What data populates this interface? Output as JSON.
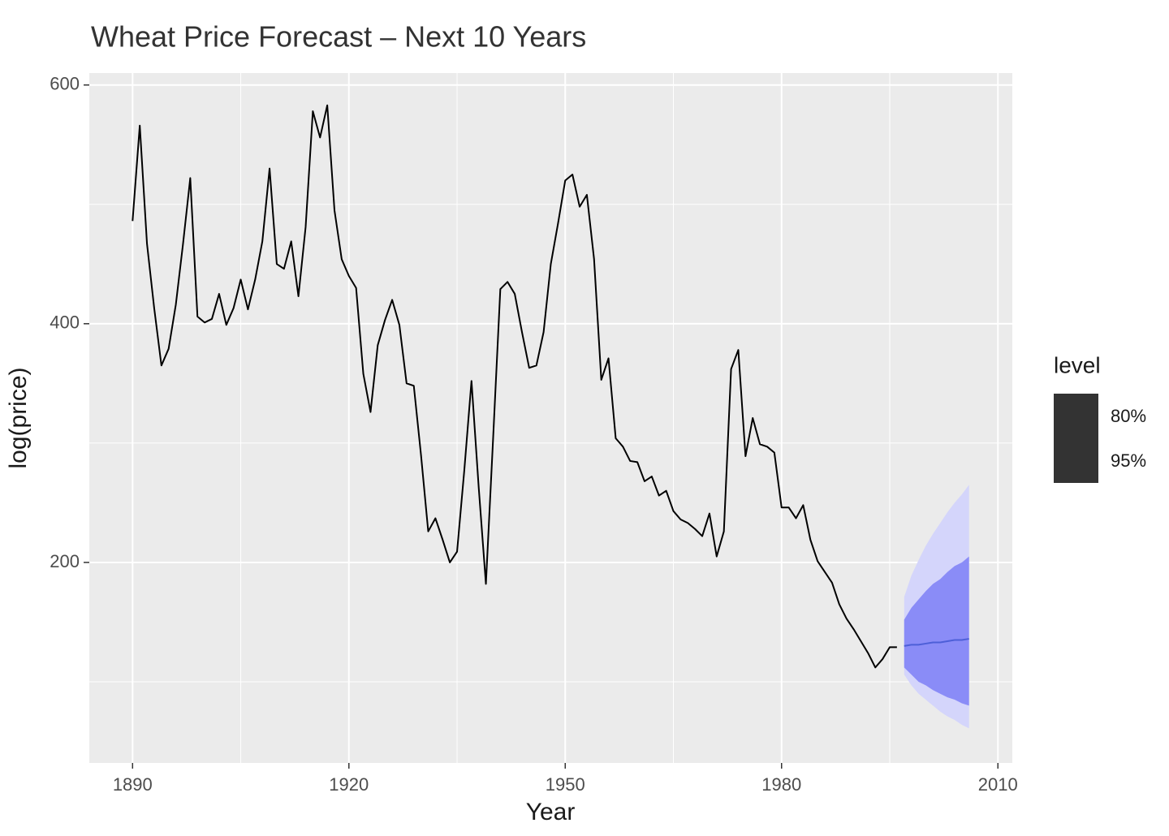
{
  "chart_data": {
    "type": "line",
    "title": "Wheat Price Forecast – Next 10 Years",
    "x_label": "Year",
    "y_label": "log(price)",
    "xlim": [
      1884,
      2012
    ],
    "ylim": [
      32,
      610
    ],
    "xticks": [
      1890,
      1920,
      1950,
      1980,
      2010
    ],
    "yticks": [
      200,
      400,
      600
    ],
    "x_minor_grid": [
      1905,
      1935,
      1965,
      1995
    ],
    "y_minor_grid": [
      100,
      300,
      500
    ],
    "grid": true,
    "color": "#000000",
    "x": [
      1890,
      1891,
      1892,
      1893,
      1894,
      1895,
      1896,
      1897,
      1898,
      1899,
      1900,
      1901,
      1902,
      1903,
      1904,
      1905,
      1906,
      1907,
      1908,
      1909,
      1910,
      1911,
      1912,
      1913,
      1914,
      1915,
      1916,
      1917,
      1918,
      1919,
      1920,
      1921,
      1922,
      1923,
      1924,
      1925,
      1926,
      1927,
      1928,
      1929,
      1930,
      1931,
      1932,
      1933,
      1934,
      1935,
      1936,
      1937,
      1938,
      1939,
      1940,
      1941,
      1942,
      1943,
      1944,
      1945,
      1946,
      1947,
      1948,
      1949,
      1950,
      1951,
      1952,
      1953,
      1954,
      1955,
      1956,
      1957,
      1958,
      1959,
      1960,
      1961,
      1962,
      1963,
      1964,
      1965,
      1966,
      1967,
      1968,
      1969,
      1970,
      1971,
      1972,
      1973,
      1974,
      1975,
      1976,
      1977,
      1978,
      1979,
      1980,
      1981,
      1982,
      1983,
      1984,
      1985,
      1986,
      1987,
      1988,
      1989,
      1990,
      1991,
      1992,
      1993,
      1994,
      1995,
      1996
    ],
    "values": [
      486,
      566,
      467,
      413,
      365,
      379,
      416,
      467,
      522,
      406,
      401,
      404,
      425,
      399,
      413,
      437,
      412,
      437,
      469,
      530,
      450,
      446,
      469,
      423,
      481,
      578,
      556,
      583,
      495,
      454,
      440,
      430,
      358,
      326,
      382,
      403,
      420,
      399,
      350,
      348,
      290,
      226,
      237,
      219,
      200,
      209,
      277,
      352,
      263,
      182,
      304,
      429,
      435,
      425,
      393,
      363,
      365,
      393,
      450,
      484,
      520,
      525,
      498,
      508,
      454,
      353,
      371,
      304,
      297,
      285,
      284,
      268,
      272,
      256,
      260,
      243,
      236,
      233,
      228,
      222,
      241,
      205,
      226,
      362,
      378,
      289,
      321,
      299,
      297,
      292,
      246,
      246,
      237,
      248,
      219,
      201,
      192,
      183,
      165,
      153,
      144,
      134,
      124,
      112,
      119,
      129,
      129
    ],
    "forecast": {
      "x": [
        1997,
        1998,
        1999,
        2000,
        2001,
        2002,
        2003,
        2004,
        2005,
        2006
      ],
      "mean": [
        130,
        131,
        131,
        132,
        133,
        133,
        134,
        135,
        135,
        136
      ],
      "color": "#4d5fd8",
      "bands": [
        {
          "name": "95%",
          "color": "#d4d5fb",
          "upper": [
            171,
            189,
            202,
            214,
            224,
            233,
            242,
            250,
            257,
            265
          ],
          "lower": [
            106,
            97,
            90,
            85,
            80,
            75,
            71,
            68,
            64,
            61
          ]
        },
        {
          "name": "80%",
          "color": "#8a8cf7",
          "upper": [
            152,
            162,
            169,
            176,
            182,
            186,
            192,
            197,
            200,
            205
          ],
          "lower": [
            112,
            106,
            100,
            97,
            93,
            90,
            87,
            85,
            82,
            80
          ]
        }
      ]
    },
    "legend_title": "level",
    "legend_order": [
      1,
      0
    ],
    "legend_key_color": "#333333"
  }
}
